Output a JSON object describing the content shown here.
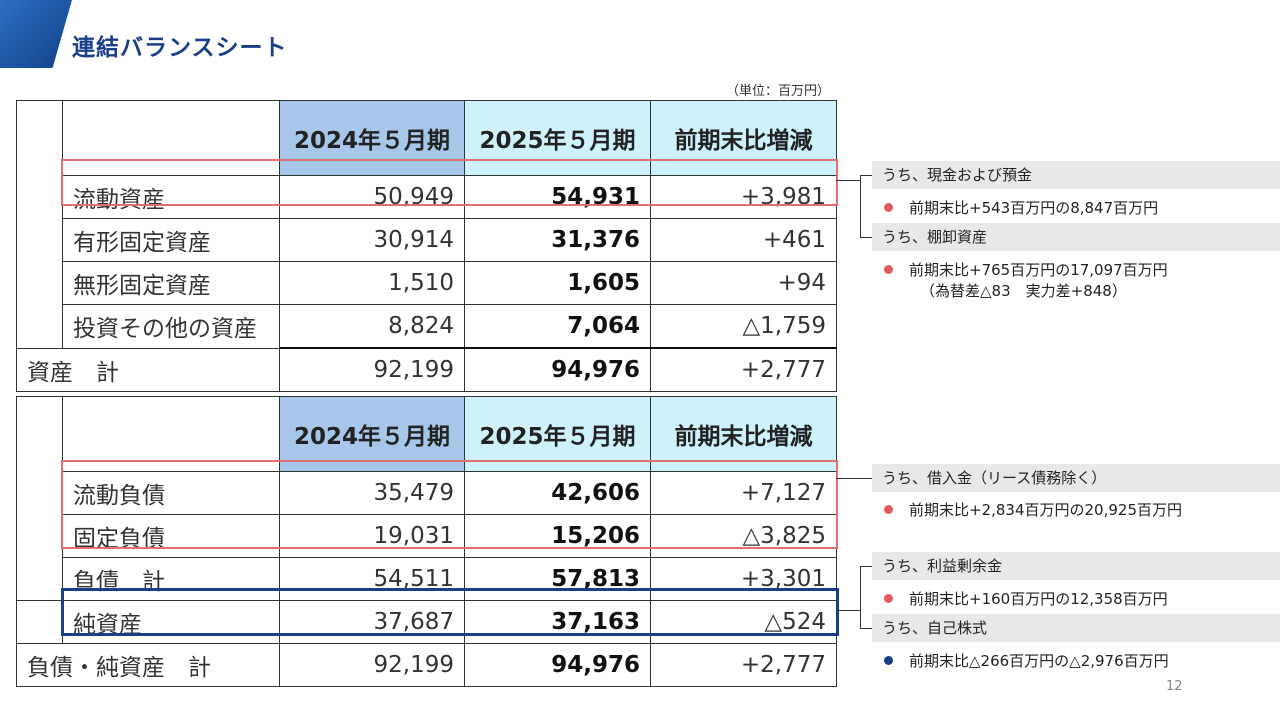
{
  "slide": {
    "title": "連結バランスシート",
    "unit": "（単位：百万円）",
    "page_number": "12"
  },
  "headers": {
    "col_2024": "2024年５月期",
    "col_2025": "2025年５月期",
    "col_delta": "前期末比増減"
  },
  "assets": {
    "rows": [
      {
        "label": "流動資産",
        "v2024": "50,949",
        "v2025": "54,931",
        "delta": "+3,981"
      },
      {
        "label": "有形固定資産",
        "v2024": "30,914",
        "v2025": "31,376",
        "delta": "+461"
      },
      {
        "label": "無形固定資産",
        "v2024": "1,510",
        "v2025": "1,605",
        "delta": "+94"
      },
      {
        "label": "投資その他の資産",
        "v2024": "8,824",
        "v2025": "7,064",
        "delta": "△1,759"
      }
    ],
    "total": {
      "label": "資産　計",
      "v2024": "92,199",
      "v2025": "94,976",
      "delta": "+2,777"
    }
  },
  "liabilities": {
    "rows": [
      {
        "label": "流動負債",
        "v2024": "35,479",
        "v2025": "42,606",
        "delta": "+7,127"
      },
      {
        "label": "固定負債",
        "v2024": "19,031",
        "v2025": "15,206",
        "delta": "△3,825"
      },
      {
        "label": "負債　計",
        "v2024": "54,511",
        "v2025": "57,813",
        "delta": "+3,301"
      }
    ],
    "net_assets": {
      "label": "純資産",
      "v2024": "37,687",
      "v2025": "37,163",
      "delta": "△524"
    },
    "total": {
      "label": "負債・純資産　計",
      "v2024": "92,199",
      "v2025": "94,976",
      "delta": "+2,777"
    }
  },
  "notes": {
    "cash_head": "うち、現金および預金",
    "cash_detail": "前期末比+543百万円の8,847百万円",
    "inventory_head": "うち、棚卸資産",
    "inventory_detail": "前期末比+765百万円の17,097百万円",
    "inventory_sub": "（為替差△83　実力差+848）",
    "borrowings_head": "うち、借入金（リース債務除く）",
    "borrowings_detail": "前期末比+2,834百万円の20,925百万円",
    "retained_head": "うち、利益剰余金",
    "retained_detail": "前期末比+160百万円の12,358百万円",
    "treasury_head": "うち、自己株式",
    "treasury_detail": "前期末比△266百万円の△2,976百万円"
  },
  "colors": {
    "title_navy": "#1a3f86",
    "highlight_red": "#e46d70",
    "header_2024": "#a6c7ea",
    "header_2025": "#cdf2fb"
  }
}
